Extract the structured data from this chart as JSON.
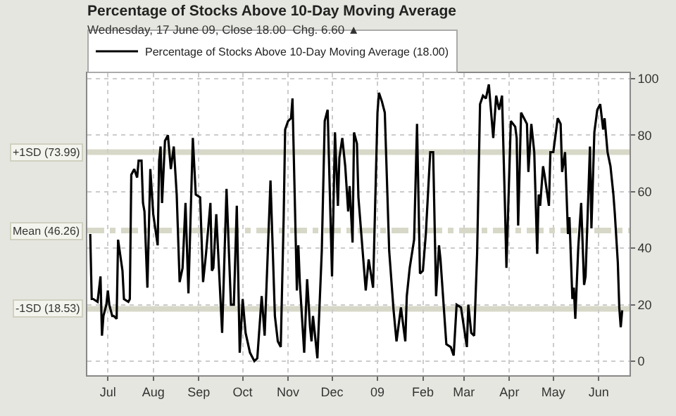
{
  "chart_data": {
    "type": "line",
    "title": "Percentage of Stocks Above 10-Day Moving Average",
    "subtitle": "Wednesday, 17 June 09, Close 18.00  Chg. 6.60 ▲",
    "x": [
      "2008-06-19",
      "2008-06-20",
      "2008-06-21",
      "2008-06-24",
      "2008-06-26",
      "2008-06-27",
      "2008-06-28",
      "2008-06-30",
      "2008-07-01",
      "2008-07-02",
      "2008-07-04",
      "2008-07-05",
      "2008-07-07",
      "2008-07-08",
      "2008-07-11",
      "2008-07-12",
      "2008-07-15",
      "2008-07-16",
      "2008-07-17",
      "2008-07-19",
      "2008-07-21",
      "2008-07-22",
      "2008-07-24",
      "2008-07-25",
      "2008-07-26",
      "2008-07-28",
      "2008-07-30",
      "2008-08-01",
      "2008-08-04",
      "2008-08-05",
      "2008-08-06",
      "2008-08-07",
      "2008-08-09",
      "2008-08-11",
      "2008-08-13",
      "2008-08-15",
      "2008-08-17",
      "2008-08-19",
      "2008-08-21",
      "2008-08-23",
      "2008-08-25",
      "2008-08-28",
      "2008-08-30",
      "2008-09-02",
      "2008-09-04",
      "2008-09-06",
      "2008-09-09",
      "2008-09-10",
      "2008-09-11",
      "2008-09-13",
      "2008-09-17",
      "2008-09-20",
      "2008-09-23",
      "2008-09-25",
      "2008-09-27",
      "2008-09-29",
      "2008-10-01",
      "2008-10-03",
      "2008-10-06",
      "2008-10-09",
      "2008-10-11",
      "2008-10-14",
      "2008-10-16",
      "2008-10-20",
      "2008-10-23",
      "2008-10-25",
      "2008-10-27",
      "2008-10-29",
      "2008-10-30",
      "2008-11-01",
      "2008-11-03",
      "2008-11-04",
      "2008-11-07",
      "2008-11-08",
      "2008-11-09",
      "2008-11-12",
      "2008-11-14",
      "2008-11-16",
      "2008-11-17",
      "2008-11-18",
      "2008-11-21",
      "2008-11-24",
      "2008-11-26",
      "2008-11-28",
      "2008-12-01",
      "2008-12-03",
      "2008-12-05",
      "2008-12-06",
      "2008-12-08",
      "2008-12-10",
      "2008-12-12",
      "2008-12-13",
      "2008-12-15",
      "2008-12-16",
      "2008-12-18",
      "2008-12-19",
      "2008-12-24",
      "2008-12-26",
      "2008-12-29",
      "2009-01-01",
      "2009-01-02",
      "2009-01-04",
      "2009-01-06",
      "2009-01-09",
      "2009-01-12",
      "2009-01-14",
      "2009-01-17",
      "2009-01-20",
      "2009-01-21",
      "2009-01-23",
      "2009-01-26",
      "2009-01-28",
      "2009-01-30",
      "2009-02-01",
      "2009-02-03",
      "2009-02-06",
      "2009-02-08",
      "2009-02-10",
      "2009-02-12",
      "2009-02-13",
      "2009-02-17",
      "2009-02-20",
      "2009-02-22",
      "2009-02-24",
      "2009-02-27",
      "2009-03-03",
      "2009-03-04",
      "2009-03-06",
      "2009-03-08",
      "2009-03-10",
      "2009-03-12",
      "2009-03-14",
      "2009-03-16",
      "2009-03-18",
      "2009-03-21",
      "2009-03-23",
      "2009-03-25",
      "2009-03-27",
      "2009-03-29",
      "2009-03-30",
      "2009-04-02",
      "2009-04-05",
      "2009-04-06",
      "2009-04-07",
      "2009-04-09",
      "2009-04-11",
      "2009-04-13",
      "2009-04-14",
      "2009-04-16",
      "2009-04-18",
      "2009-04-20",
      "2009-04-21",
      "2009-04-22",
      "2009-04-24",
      "2009-04-25",
      "2009-04-28",
      "2009-04-29",
      "2009-05-01",
      "2009-05-04",
      "2009-05-06",
      "2009-05-07",
      "2009-05-09",
      "2009-05-11",
      "2009-05-12",
      "2009-05-14",
      "2009-05-15",
      "2009-05-16",
      "2009-05-18",
      "2009-05-20",
      "2009-05-22",
      "2009-05-23",
      "2009-05-26",
      "2009-05-27",
      "2009-05-29",
      "2009-05-31",
      "2009-06-02",
      "2009-06-04",
      "2009-06-05",
      "2009-06-07",
      "2009-06-09",
      "2009-06-11",
      "2009-06-12",
      "2009-06-14",
      "2009-06-15",
      "2009-06-16",
      "2009-06-17"
    ],
    "series": [
      {
        "name": "Percentage of Stocks Above 10-Day Moving Average (18.00)",
        "color": "#000000",
        "values": [
          45,
          22,
          22,
          21,
          30,
          9,
          16,
          20,
          25,
          20,
          16,
          16,
          15,
          43,
          32,
          22,
          21,
          22,
          66,
          68,
          65,
          71,
          71,
          56,
          53,
          26,
          68,
          52,
          41,
          71,
          76,
          56,
          78,
          80,
          68,
          76,
          59,
          28,
          33,
          56,
          24,
          79,
          59,
          58,
          28,
          38,
          56,
          32,
          33,
          52,
          10,
          61,
          20,
          20,
          55,
          3,
          22,
          10,
          3,
          0,
          1,
          23,
          9,
          64,
          16,
          7,
          5,
          51,
          82,
          85,
          86,
          93,
          25,
          41,
          28,
          3,
          29,
          12,
          7,
          16,
          1,
          39,
          85,
          89,
          30,
          81,
          55,
          72,
          79,
          69,
          53,
          62,
          42,
          81,
          77,
          58,
          25,
          36,
          26,
          88,
          95,
          92,
          88,
          39,
          18,
          7,
          19,
          7,
          23,
          33,
          43,
          84,
          31,
          32,
          45,
          74,
          74,
          23,
          41,
          36,
          6,
          5,
          2,
          20,
          19,
          5,
          20,
          10,
          9,
          38,
          91,
          94,
          93,
          98,
          79,
          94,
          89,
          94,
          55,
          33,
          85,
          83,
          79,
          48,
          88,
          86,
          84,
          67,
          84,
          74,
          38,
          59,
          55,
          69,
          66,
          55,
          74,
          74,
          86,
          84,
          67,
          74,
          45,
          51,
          22,
          26,
          15,
          40,
          56,
          27,
          30,
          76,
          47,
          81,
          89,
          91,
          82,
          86,
          74,
          69,
          59,
          52,
          35,
          19,
          12,
          18
        ]
      }
    ],
    "xlim": [
      "2008-06-17",
      "2009-06-22"
    ],
    "xticks": [
      {
        "value": "2008-07-01",
        "label": "Jul"
      },
      {
        "value": "2008-08-01",
        "label": "Aug"
      },
      {
        "value": "2008-09-01",
        "label": "Sep"
      },
      {
        "value": "2008-10-01",
        "label": "Oct"
      },
      {
        "value": "2008-11-01",
        "label": "Nov"
      },
      {
        "value": "2008-12-01",
        "label": "Dec"
      },
      {
        "value": "2009-01-01",
        "label": "09"
      },
      {
        "value": "2009-02-01",
        "label": "Feb"
      },
      {
        "value": "2009-03-01",
        "label": "Mar"
      },
      {
        "value": "2009-04-01",
        "label": "Apr"
      },
      {
        "value": "2009-05-01",
        "label": "May"
      },
      {
        "value": "2009-06-01",
        "label": "Jun"
      }
    ],
    "ylim": [
      -5,
      102
    ],
    "yticks": [
      0,
      20,
      40,
      60,
      80,
      100
    ],
    "ref_lines": [
      {
        "axis": "y",
        "value": 73.99,
        "label": "+1SD (73.99)",
        "color": "#d8d8c8",
        "line_style": "solid"
      },
      {
        "axis": "y",
        "value": 46.26,
        "label": "Mean (46.26)",
        "color": "#d8d8c8",
        "line_style": "dashed"
      },
      {
        "axis": "y",
        "value": 18.53,
        "label": "-1SD (18.53)",
        "color": "#d8d8c8",
        "line_style": "solid"
      }
    ],
    "grid": true,
    "legend": "top left",
    "marker": "none",
    "line_style": "solid"
  }
}
